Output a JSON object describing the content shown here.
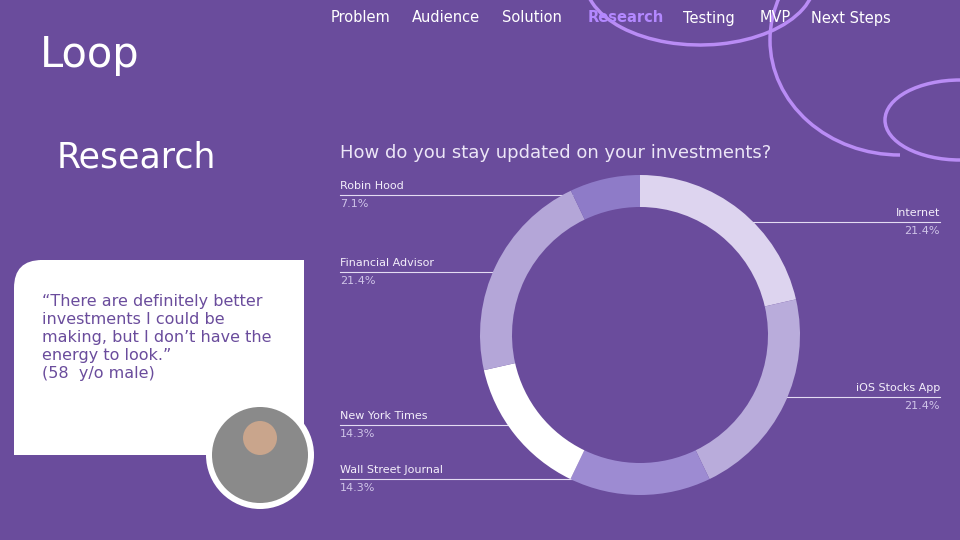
{
  "chart_data": {
    "type": "donut",
    "title": "How do you stay updated on your investments?",
    "categories": [
      "Internet",
      "iOS Stocks App",
      "Wall Street Journal",
      "New York Times",
      "Financial Advisor",
      "Robin Hood"
    ],
    "values": [
      21.4,
      21.4,
      14.3,
      14.3,
      21.4,
      7.1
    ],
    "value_labels": [
      "21.4%",
      "21.4%",
      "14.3%",
      "14.3%",
      "21.4%",
      "7.1%"
    ],
    "colors": [
      "#ddd4ef",
      "#b9acdb",
      "#9d8bd2",
      "#ffffff",
      "#b4a6d8",
      "#8e7bc8"
    ],
    "data_labels": true
  },
  "slide": {
    "logo": "Loop",
    "nav": [
      "Problem",
      "Audience",
      "Solution",
      "Research",
      "Testing",
      "MVP",
      "Next Steps"
    ],
    "heading": "Research",
    "quote": "“There are definitely better investments I could be making, but I don’t have the energy to look.”",
    "quote_attribution": "(58  y/o male)"
  }
}
